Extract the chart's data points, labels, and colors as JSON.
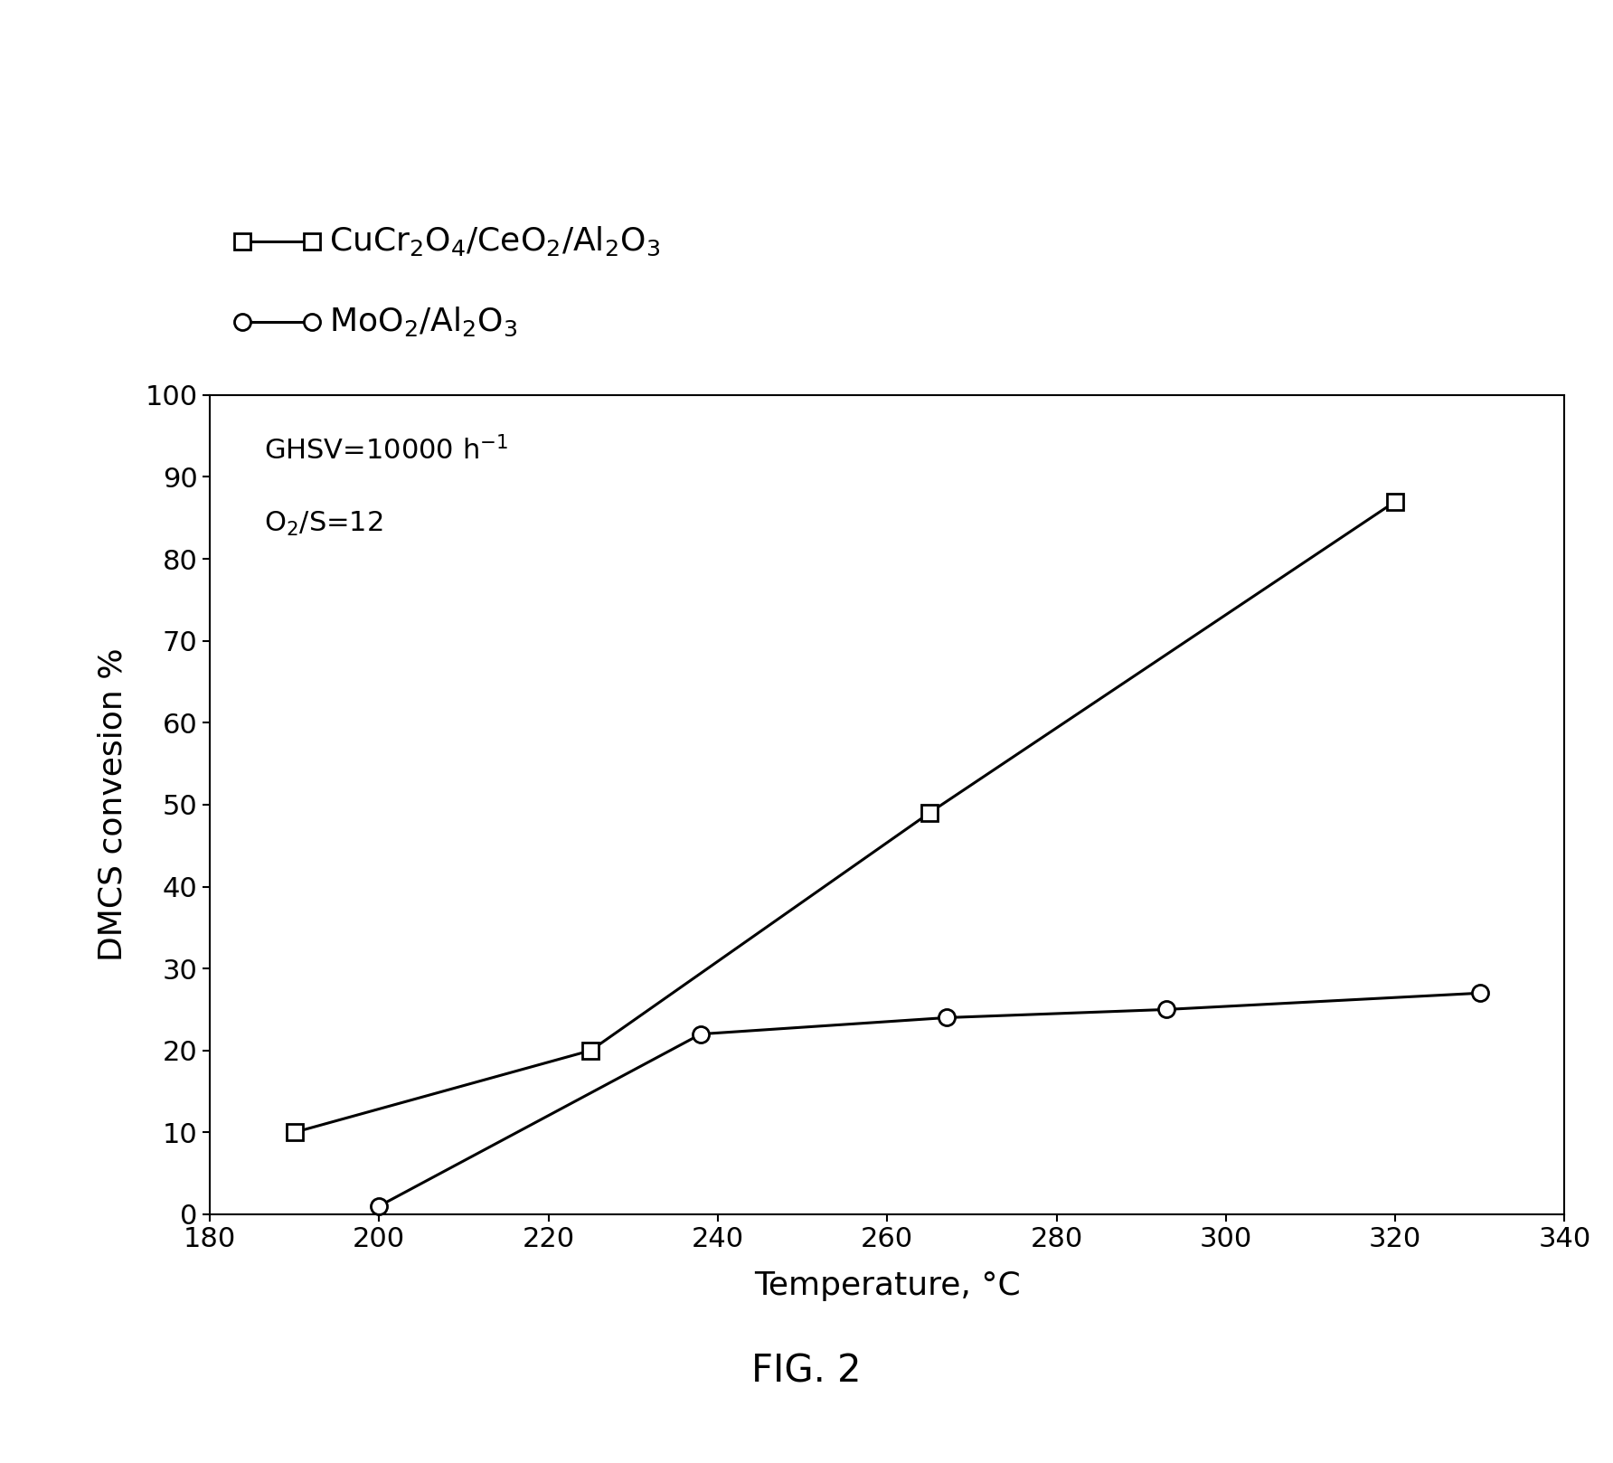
{
  "series1": {
    "label": "CuCr$_2$O$_4$/CeO$_2$/Al$_2$O$_3$",
    "x": [
      190,
      225,
      265,
      320
    ],
    "y": [
      10,
      20,
      49,
      87
    ],
    "marker": "s",
    "markersize": 13,
    "linewidth": 2.2,
    "color": "black",
    "markerfacecolor": "white",
    "markeredgecolor": "black",
    "markeredgewidth": 2
  },
  "series2": {
    "label": "MoO$_2$/Al$_2$O$_3$",
    "x": [
      200,
      238,
      267,
      293,
      330
    ],
    "y": [
      1,
      22,
      24,
      25,
      27
    ],
    "marker": "o",
    "markersize": 13,
    "linewidth": 2.2,
    "color": "black",
    "markerfacecolor": "white",
    "markeredgecolor": "black",
    "markeredgewidth": 2
  },
  "xlabel": "Temperature, °C",
  "ylabel": "DMCS convesion %",
  "xlim": [
    180,
    340
  ],
  "ylim": [
    0,
    100
  ],
  "xticks": [
    180,
    200,
    220,
    240,
    260,
    280,
    300,
    320,
    340
  ],
  "yticks": [
    0,
    10,
    20,
    30,
    40,
    50,
    60,
    70,
    80,
    90,
    100
  ],
  "annotation_line1": "GHSV=10000 h$^{-1}$",
  "annotation_line2": "O$_2$/S=12",
  "fig_label": "FIG. 2",
  "background_color": "white",
  "legend_label1": "$\\mathdefault{-}$$\\square$$\\mathdefault{-}$CuCr$_2$O$_4$/CeO$_2$/Al$_2$O$_3$",
  "legend_label2": "$\\mathdefault{-}$O$\\mathdefault{-}$MoO$_2$/Al$_2$O$_3$"
}
